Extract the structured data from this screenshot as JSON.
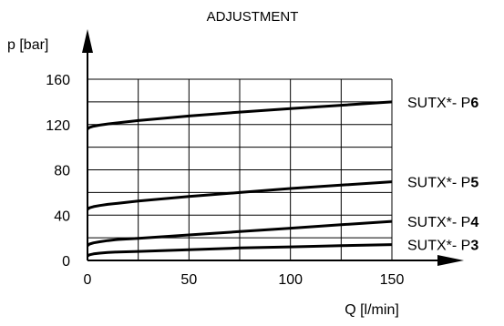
{
  "chart_data": {
    "type": "line",
    "title": "ADJUSTMENT",
    "xlabel": "Q [l/min]",
    "ylabel": "p [bar]",
    "xlim": [
      0,
      150
    ],
    "ylim": [
      0,
      160
    ],
    "x_ticks": [
      0,
      50,
      100,
      150
    ],
    "y_ticks": [
      0,
      40,
      80,
      120,
      160
    ],
    "grid": true,
    "series": [
      {
        "name": "SUTX*- P6",
        "prefix": "SUTX*- P",
        "suffix": "6",
        "x": [
          0,
          1,
          3,
          6,
          10,
          15,
          25,
          50,
          75,
          100,
          125,
          150
        ],
        "y": [
          116,
          117.5,
          118.5,
          119.5,
          120.5,
          121.5,
          123.5,
          127.5,
          131,
          134,
          137,
          140
        ]
      },
      {
        "name": "SUTX*- P5",
        "prefix": "SUTX*- P",
        "suffix": "5",
        "x": [
          0,
          1,
          3,
          6,
          10,
          15,
          25,
          50,
          75,
          100,
          125,
          150
        ],
        "y": [
          45,
          46.5,
          47.5,
          48.5,
          49.5,
          50.5,
          52.5,
          56.5,
          60,
          63.5,
          66.5,
          69.5
        ]
      },
      {
        "name": "SUTX*- P4",
        "prefix": "SUTX*- P",
        "suffix": "4",
        "x": [
          0,
          1,
          3,
          6,
          10,
          15,
          25,
          50,
          75,
          100,
          125,
          150
        ],
        "y": [
          13,
          14.5,
          15.5,
          16.5,
          17.5,
          18.5,
          19.5,
          22.5,
          25.5,
          28.5,
          31.5,
          34.5
        ]
      },
      {
        "name": "SUTX*- P3",
        "prefix": "SUTX*- P",
        "suffix": "3",
        "x": [
          0,
          1,
          3,
          6,
          10,
          15,
          25,
          50,
          75,
          100,
          125,
          150
        ],
        "y": [
          4,
          5,
          5.8,
          6.4,
          7,
          7.5,
          8,
          9.5,
          11,
          12,
          13,
          14
        ]
      }
    ]
  }
}
